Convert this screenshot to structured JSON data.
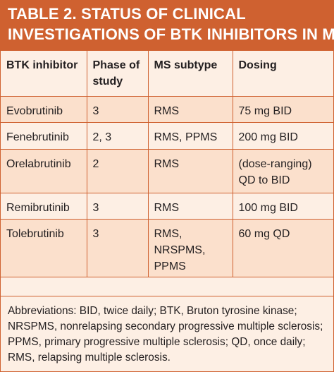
{
  "table": {
    "title_line1": "TABLE 2. STATUS OF CLINICAL",
    "title_line2": "INVESTIGATIONS OF BTK INHIBITORS IN MS",
    "headers": [
      "BTK inhibitor",
      "Phase of study",
      "MS subtype",
      "Dosing"
    ],
    "rows": [
      {
        "inhibitor": "Evobrutinib",
        "phase": "3",
        "subtype": "RMS",
        "dosing": "75 mg BID"
      },
      {
        "inhibitor": "Fenebrutinib",
        "phase": "2, 3",
        "subtype": "RMS, PPMS",
        "dosing": "200 mg BID"
      },
      {
        "inhibitor": "Orelabrutinib",
        "phase": "2",
        "subtype": "RMS",
        "dosing": "(dose-ranging) QD to BID"
      },
      {
        "inhibitor": "Remibrutinib",
        "phase": "3",
        "subtype": "RMS",
        "dosing": "100 mg BID"
      },
      {
        "inhibitor": "Tolebrutinib",
        "phase": "3",
        "subtype": "RMS, NRSPMS, PPMS",
        "dosing": "60 mg QD"
      }
    ],
    "footnote": "Abbreviations: BID, twice daily; BTK, Bruton tyrosine kinase; NRSPMS, nonrelapsing secondary progressive multiple sclerosis; PPMS, primary progressive multiple sclerosis; QD, once daily; RMS, relapsing multiple sclerosis."
  },
  "colors": {
    "accent": "#cf6130",
    "band_light": "#fdefe4",
    "band_dark": "#fbe0cc",
    "text": "#231f20"
  }
}
